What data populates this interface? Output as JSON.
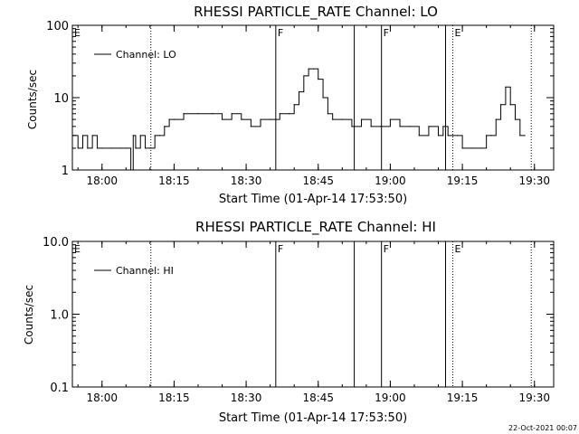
{
  "footer_timestamp": "22-Oct-2021 00:07",
  "chart_data": [
    {
      "type": "line",
      "title": "RHESSI PARTICLE_RATE Channel: LO",
      "xlabel": "Start Time (01-Apr-14 17:53:50)",
      "ylabel": "Counts/sec",
      "yscale": "log",
      "xlim": [
        "17:53:50",
        "19:34:00"
      ],
      "ylim": [
        1,
        100
      ],
      "x_ticks": [
        "18:00",
        "18:15",
        "18:30",
        "18:45",
        "19:00",
        "19:15",
        "19:30"
      ],
      "y_ticks": [
        "1",
        "10",
        "100"
      ],
      "legend": "top-left",
      "series": [
        {
          "name": "Channel: LO",
          "x": [
            "17:54",
            "17:55",
            "17:56",
            "17:57",
            "17:58",
            "17:59",
            "18:00",
            "18:02",
            "18:04",
            "18:05",
            "18:06",
            "18:06:30",
            "18:07",
            "18:08",
            "18:09",
            "18:10",
            "18:11",
            "18:12",
            "18:13",
            "18:14",
            "18:15",
            "18:17",
            "18:20",
            "18:23",
            "18:25",
            "18:27",
            "18:29",
            "18:31",
            "18:33",
            "18:35",
            "18:37",
            "18:39",
            "18:40",
            "18:41",
            "18:42",
            "18:43",
            "18:44",
            "18:45",
            "18:46",
            "18:47",
            "18:48",
            "18:50",
            "18:52",
            "18:54",
            "18:56",
            "18:58",
            "19:00",
            "19:02",
            "19:04",
            "19:06",
            "19:08",
            "19:10",
            "19:11",
            "19:12",
            "19:13",
            "19:14",
            "19:15",
            "19:17",
            "19:19",
            "19:20",
            "19:21",
            "19:22",
            "19:23",
            "19:24",
            "19:25",
            "19:26",
            "19:27",
            "19:28"
          ],
          "values": [
            3,
            2,
            3,
            2,
            3,
            2,
            2,
            2,
            2,
            2,
            1,
            3,
            2,
            3,
            2,
            2,
            3,
            3,
            4,
            5,
            5,
            6,
            6,
            6,
            5,
            6,
            5,
            4,
            5,
            5,
            6,
            6,
            8,
            12,
            20,
            25,
            25,
            18,
            10,
            6,
            5,
            5,
            4,
            5,
            4,
            4,
            5,
            4,
            4,
            3,
            4,
            3,
            4,
            3,
            3,
            3,
            2,
            2,
            2,
            3,
            3,
            5,
            8,
            14,
            8,
            5,
            3,
            3
          ]
        }
      ],
      "markers": [
        {
          "label": "F",
          "time": "18:36:10",
          "style": "solid"
        },
        {
          "label": "",
          "time": "18:52:30",
          "style": "solid"
        },
        {
          "label": "F",
          "time": "18:58:10",
          "style": "solid"
        },
        {
          "label": "",
          "time": "19:11:30",
          "style": "solid"
        },
        {
          "label": "E",
          "time": "19:13:00",
          "style": "dotted"
        },
        {
          "label": "",
          "time": "18:10:10",
          "style": "dotted"
        },
        {
          "label": "",
          "time": "19:29:20",
          "style": "dotted"
        },
        {
          "label": "E",
          "time": "17:53:50",
          "style": "none"
        }
      ]
    },
    {
      "type": "line",
      "title": "RHESSI PARTICLE_RATE Channel: HI",
      "xlabel": "Start Time (01-Apr-14 17:53:50)",
      "ylabel": "Counts/sec",
      "yscale": "log",
      "xlim": [
        "17:53:50",
        "19:34:00"
      ],
      "ylim": [
        0.1,
        10
      ],
      "x_ticks": [
        "18:00",
        "18:15",
        "18:30",
        "18:45",
        "19:00",
        "19:15",
        "19:30"
      ],
      "y_ticks": [
        "0.1",
        "1.0",
        "10.0"
      ],
      "legend": "top-left",
      "series": [
        {
          "name": "Channel: HI",
          "x": [],
          "values": []
        }
      ],
      "markers": [
        {
          "label": "F",
          "time": "18:36:10",
          "style": "solid"
        },
        {
          "label": "",
          "time": "18:52:30",
          "style": "solid"
        },
        {
          "label": "F",
          "time": "18:58:10",
          "style": "solid"
        },
        {
          "label": "",
          "time": "19:11:30",
          "style": "solid"
        },
        {
          "label": "E",
          "time": "19:13:00",
          "style": "dotted"
        },
        {
          "label": "",
          "time": "18:10:10",
          "style": "dotted"
        },
        {
          "label": "",
          "time": "19:29:20",
          "style": "dotted"
        },
        {
          "label": "E",
          "time": "17:53:50",
          "style": "none"
        }
      ]
    }
  ]
}
